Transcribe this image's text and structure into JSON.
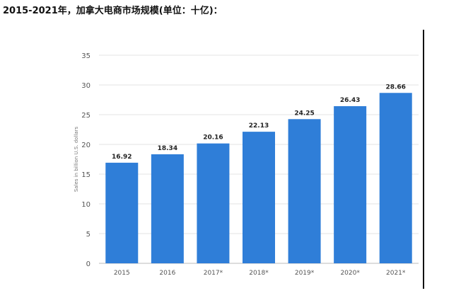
{
  "page": {
    "title": "2015-2021年，加拿大电商市场规模(单位：十亿)："
  },
  "chart_data": {
    "type": "bar",
    "title": "2015-2021年，加拿大电商市场规模(单位：十亿)：",
    "xlabel": "",
    "ylabel": "Sales in billion U.S. dollars",
    "categories": [
      "2015",
      "2016",
      "2017*",
      "2018*",
      "2019*",
      "2020*",
      "2021*"
    ],
    "values": [
      16.92,
      18.34,
      20.16,
      22.13,
      24.25,
      26.43,
      28.66
    ],
    "value_labels": [
      "16.92",
      "18.34",
      "20.16",
      "22.13",
      "24.25",
      "26.43",
      "28.66"
    ],
    "ylim": [
      0,
      35
    ],
    "yticks": [
      0,
      5,
      10,
      15,
      20,
      25,
      30,
      35
    ],
    "ytick_labels": [
      "0",
      "5",
      "10",
      "15",
      "20",
      "25",
      "30",
      "35"
    ],
    "grid": true,
    "bar_color": "#2f7ed8",
    "grid_color": "#e3e3e3",
    "axis_text_color": "#555555",
    "label_color": "#222222"
  }
}
